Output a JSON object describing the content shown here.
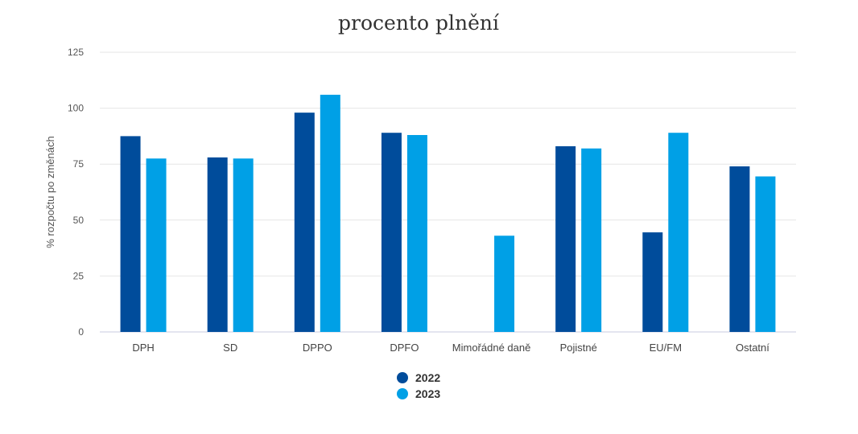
{
  "chart_data": {
    "type": "bar",
    "title": "procento plnění",
    "ylabel": "% rozpočtu po změnách",
    "xlabel": "",
    "ylim": [
      0,
      125
    ],
    "yticks": [
      0,
      25,
      50,
      75,
      100,
      125
    ],
    "grid": true,
    "legend_position": "bottom",
    "categories": [
      "DPH",
      "SD",
      "DPPO",
      "DPFO",
      "Mimořádné daně",
      "Pojistné",
      "EU/FM",
      "Ostatní"
    ],
    "series": [
      {
        "name": "2022",
        "color": "#004c9b",
        "values": [
          87.5,
          78,
          98,
          89,
          null,
          83,
          44.5,
          74
        ]
      },
      {
        "name": "2023",
        "color": "#00a0e6",
        "values": [
          77.5,
          77.5,
          106,
          88,
          43,
          82,
          89,
          69.5
        ]
      }
    ]
  }
}
